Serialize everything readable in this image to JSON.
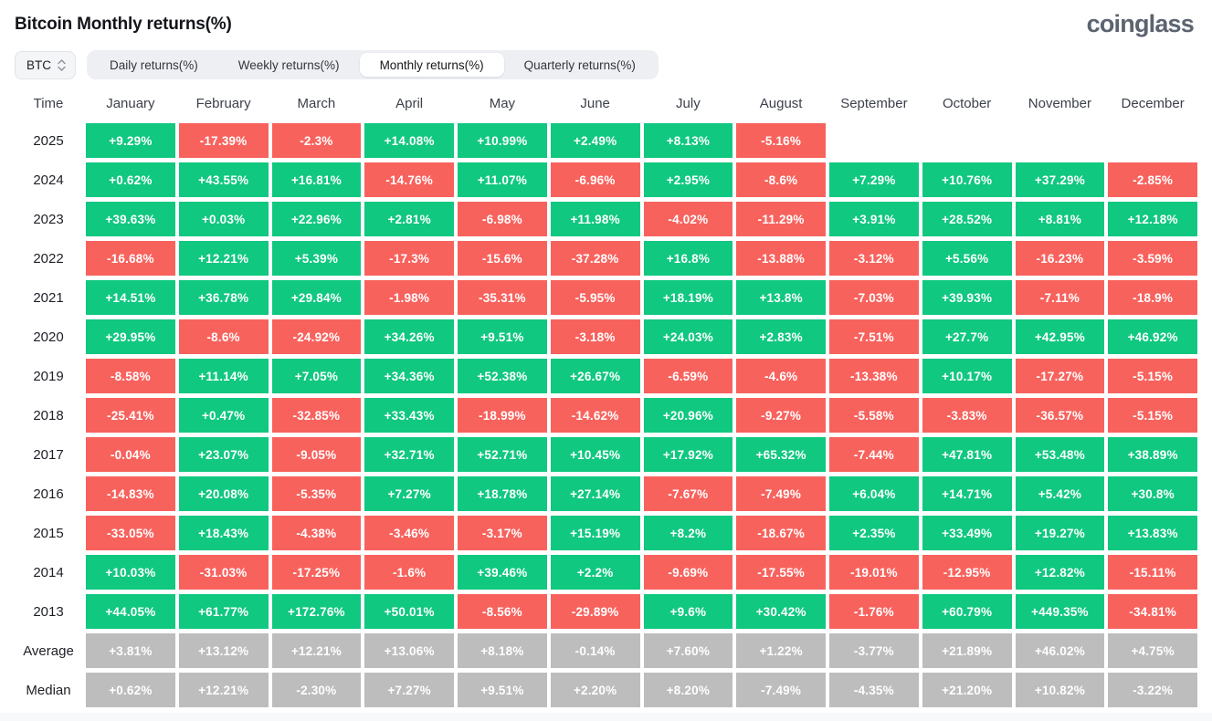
{
  "header": {
    "title": "Bitcoin Monthly returns(%)",
    "logo": "coinglass"
  },
  "controls": {
    "coin": "BTC",
    "tabs": [
      {
        "label": "Daily returns(%)",
        "active": false
      },
      {
        "label": "Weekly returns(%)",
        "active": false
      },
      {
        "label": "Monthly returns(%)",
        "active": true
      },
      {
        "label": "Quarterly returns(%)",
        "active": false
      }
    ]
  },
  "colors": {
    "positive": "#10C880",
    "negative": "#F8625D",
    "summary": "#BDBDBD"
  },
  "table": {
    "columns": [
      "Time",
      "January",
      "February",
      "March",
      "April",
      "May",
      "June",
      "July",
      "August",
      "September",
      "October",
      "November",
      "December"
    ],
    "rows": [
      {
        "label": "2025",
        "type": "year",
        "values": [
          "+9.29%",
          "-17.39%",
          "-2.3%",
          "+14.08%",
          "+10.99%",
          "+2.49%",
          "+8.13%",
          "-5.16%",
          null,
          null,
          null,
          null
        ]
      },
      {
        "label": "2024",
        "type": "year",
        "values": [
          "+0.62%",
          "+43.55%",
          "+16.81%",
          "-14.76%",
          "+11.07%",
          "-6.96%",
          "+2.95%",
          "-8.6%",
          "+7.29%",
          "+10.76%",
          "+37.29%",
          "-2.85%"
        ]
      },
      {
        "label": "2023",
        "type": "year",
        "values": [
          "+39.63%",
          "+0.03%",
          "+22.96%",
          "+2.81%",
          "-6.98%",
          "+11.98%",
          "-4.02%",
          "-11.29%",
          "+3.91%",
          "+28.52%",
          "+8.81%",
          "+12.18%"
        ]
      },
      {
        "label": "2022",
        "type": "year",
        "values": [
          "-16.68%",
          "+12.21%",
          "+5.39%",
          "-17.3%",
          "-15.6%",
          "-37.28%",
          "+16.8%",
          "-13.88%",
          "-3.12%",
          "+5.56%",
          "-16.23%",
          "-3.59%"
        ]
      },
      {
        "label": "2021",
        "type": "year",
        "values": [
          "+14.51%",
          "+36.78%",
          "+29.84%",
          "-1.98%",
          "-35.31%",
          "-5.95%",
          "+18.19%",
          "+13.8%",
          "-7.03%",
          "+39.93%",
          "-7.11%",
          "-18.9%"
        ]
      },
      {
        "label": "2020",
        "type": "year",
        "values": [
          "+29.95%",
          "-8.6%",
          "-24.92%",
          "+34.26%",
          "+9.51%",
          "-3.18%",
          "+24.03%",
          "+2.83%",
          "-7.51%",
          "+27.7%",
          "+42.95%",
          "+46.92%"
        ]
      },
      {
        "label": "2019",
        "type": "year",
        "values": [
          "-8.58%",
          "+11.14%",
          "+7.05%",
          "+34.36%",
          "+52.38%",
          "+26.67%",
          "-6.59%",
          "-4.6%",
          "-13.38%",
          "+10.17%",
          "-17.27%",
          "-5.15%"
        ]
      },
      {
        "label": "2018",
        "type": "year",
        "values": [
          "-25.41%",
          "+0.47%",
          "-32.85%",
          "+33.43%",
          "-18.99%",
          "-14.62%",
          "+20.96%",
          "-9.27%",
          "-5.58%",
          "-3.83%",
          "-36.57%",
          "-5.15%"
        ]
      },
      {
        "label": "2017",
        "type": "year",
        "values": [
          "-0.04%",
          "+23.07%",
          "-9.05%",
          "+32.71%",
          "+52.71%",
          "+10.45%",
          "+17.92%",
          "+65.32%",
          "-7.44%",
          "+47.81%",
          "+53.48%",
          "+38.89%"
        ]
      },
      {
        "label": "2016",
        "type": "year",
        "values": [
          "-14.83%",
          "+20.08%",
          "-5.35%",
          "+7.27%",
          "+18.78%",
          "+27.14%",
          "-7.67%",
          "-7.49%",
          "+6.04%",
          "+14.71%",
          "+5.42%",
          "+30.8%"
        ]
      },
      {
        "label": "2015",
        "type": "year",
        "values": [
          "-33.05%",
          "+18.43%",
          "-4.38%",
          "-3.46%",
          "-3.17%",
          "+15.19%",
          "+8.2%",
          "-18.67%",
          "+2.35%",
          "+33.49%",
          "+19.27%",
          "+13.83%"
        ]
      },
      {
        "label": "2014",
        "type": "year",
        "values": [
          "+10.03%",
          "-31.03%",
          "-17.25%",
          "-1.6%",
          "+39.46%",
          "+2.2%",
          "-9.69%",
          "-17.55%",
          "-19.01%",
          "-12.95%",
          "+12.82%",
          "-15.11%"
        ]
      },
      {
        "label": "2013",
        "type": "year",
        "values": [
          "+44.05%",
          "+61.77%",
          "+172.76%",
          "+50.01%",
          "-8.56%",
          "-29.89%",
          "+9.6%",
          "+30.42%",
          "-1.76%",
          "+60.79%",
          "+449.35%",
          "-34.81%"
        ]
      },
      {
        "label": "Average",
        "type": "summary",
        "values": [
          "+3.81%",
          "+13.12%",
          "+12.21%",
          "+13.06%",
          "+8.18%",
          "-0.14%",
          "+7.60%",
          "+1.22%",
          "-3.77%",
          "+21.89%",
          "+46.02%",
          "+4.75%"
        ]
      },
      {
        "label": "Median",
        "type": "summary",
        "values": [
          "+0.62%",
          "+12.21%",
          "-2.30%",
          "+7.27%",
          "+9.51%",
          "+2.20%",
          "+8.20%",
          "-7.49%",
          "-4.35%",
          "+21.20%",
          "+10.82%",
          "-3.22%"
        ]
      }
    ]
  }
}
